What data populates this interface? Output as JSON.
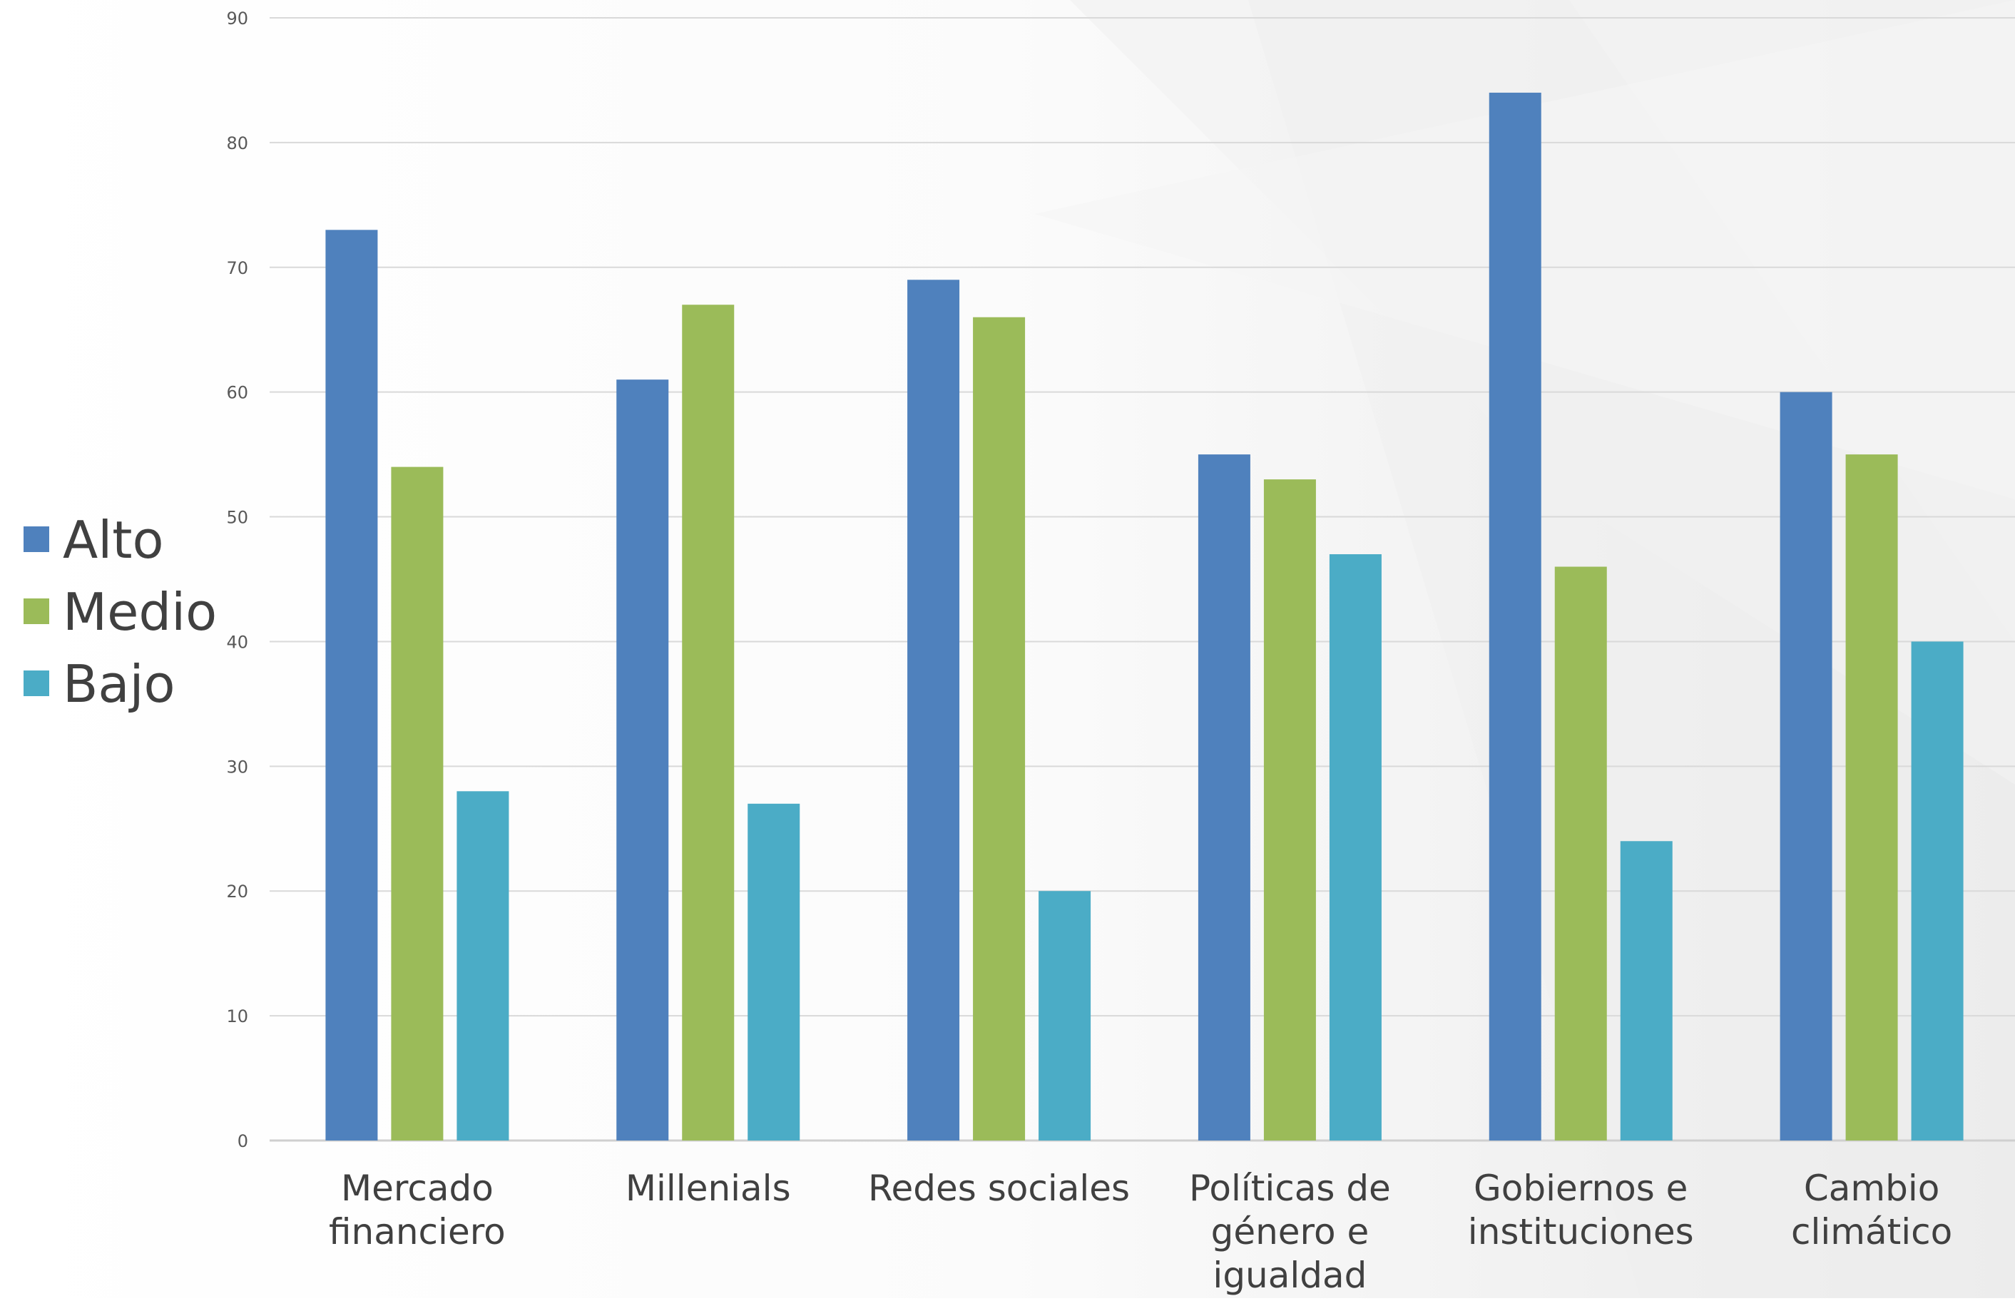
{
  "chart_data": {
    "type": "bar",
    "title": "",
    "xlabel": "",
    "ylabel": "",
    "ylim": [
      0,
      90
    ],
    "yticks": [
      0,
      10,
      20,
      30,
      40,
      50,
      60,
      70,
      80,
      90
    ],
    "grid": true,
    "legend": "left",
    "categories": [
      [
        "Mercado",
        "financiero"
      ],
      [
        "Millenials"
      ],
      [
        "Redes sociales"
      ],
      [
        "Políticas de",
        "género e",
        "igualdad"
      ],
      [
        "Gobiernos e",
        "instituciones"
      ],
      [
        "Cambio",
        "climático"
      ]
    ],
    "series": [
      {
        "name": "Alto",
        "color": "#4f81bd",
        "values": [
          73,
          61,
          69,
          55,
          84,
          60
        ]
      },
      {
        "name": "Medio",
        "color": "#9bbb59",
        "values": [
          54,
          67,
          66,
          53,
          46,
          55
        ]
      },
      {
        "name": "Bajo",
        "color": "#4bacc6",
        "values": [
          28,
          27,
          20,
          47,
          24,
          40
        ]
      }
    ]
  }
}
